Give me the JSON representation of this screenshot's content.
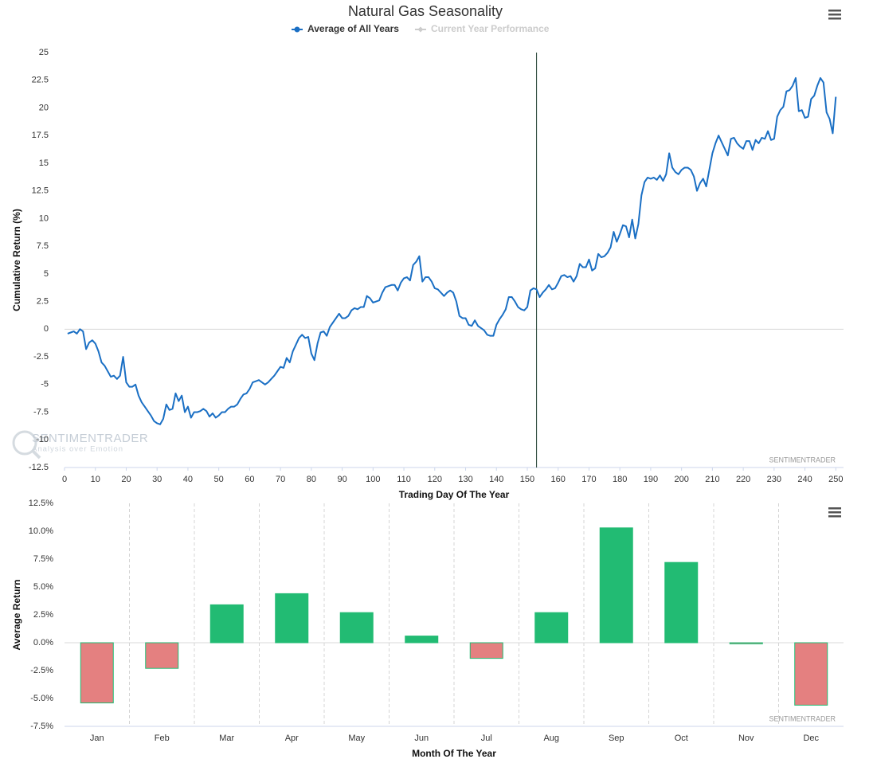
{
  "chart_data": [
    {
      "type": "line",
      "title": "Natural Gas Seasonality",
      "x_label": "Trading Day Of The Year",
      "y_label": "Cumulative Return (%)",
      "credit": "SENTIMENTRADER",
      "logo_text": "SENTIMENTRADER",
      "logo_tagline": "Analysis over Emotion",
      "legend_extra": {
        "name": "Current Year Performance",
        "color": "#cccccc"
      },
      "vline_x": 153,
      "xlim": [
        0,
        252.5
      ],
      "xticks": [
        0,
        10,
        20,
        30,
        40,
        50,
        60,
        70,
        80,
        90,
        100,
        110,
        120,
        130,
        140,
        150,
        160,
        170,
        180,
        190,
        200,
        210,
        220,
        230,
        240,
        250
      ],
      "ylim": [
        -12.5,
        25
      ],
      "yticks": [
        -12.5,
        -10,
        -7.5,
        -5,
        -2.5,
        0,
        2.5,
        5,
        7.5,
        10,
        12.5,
        15,
        17.5,
        20,
        22.5,
        25
      ],
      "x": [
        1,
        2,
        3,
        4,
        5,
        6,
        7,
        8,
        9,
        10,
        11,
        12,
        13,
        14,
        15,
        16,
        17,
        18,
        19,
        20,
        21,
        22,
        23,
        24,
        25,
        26,
        27,
        28,
        29,
        30,
        31,
        32,
        33,
        34,
        35,
        36,
        37,
        38,
        39,
        40,
        41,
        42,
        43,
        44,
        45,
        46,
        47,
        48,
        49,
        50,
        51,
        52,
        53,
        54,
        55,
        56,
        57,
        58,
        59,
        60,
        61,
        62,
        63,
        64,
        65,
        66,
        67,
        68,
        69,
        70,
        71,
        72,
        73,
        74,
        75,
        76,
        77,
        78,
        79,
        80,
        81,
        82,
        83,
        84,
        85,
        86,
        87,
        88,
        89,
        90,
        91,
        92,
        93,
        94,
        95,
        96,
        97,
        98,
        99,
        100,
        101,
        102,
        103,
        104,
        105,
        106,
        107,
        108,
        109,
        110,
        111,
        112,
        113,
        114,
        115,
        116,
        117,
        118,
        119,
        120,
        121,
        122,
        123,
        124,
        125,
        126,
        127,
        128,
        129,
        130,
        131,
        132,
        133,
        134,
        135,
        136,
        137,
        138,
        139,
        140,
        141,
        142,
        143,
        144,
        145,
        146,
        147,
        148,
        149,
        150,
        151,
        152,
        153,
        154,
        155,
        156,
        157,
        158,
        159,
        160,
        161,
        162,
        163,
        164,
        165,
        166,
        167,
        168,
        169,
        170,
        171,
        172,
        173,
        174,
        175,
        176,
        177,
        178,
        179,
        180,
        181,
        182,
        183,
        184,
        185,
        186,
        187,
        188,
        189,
        190,
        191,
        192,
        193,
        194,
        195,
        196,
        197,
        198,
        199,
        200,
        201,
        202,
        203,
        204,
        205,
        206,
        207,
        208,
        209,
        210,
        211,
        212,
        213,
        214,
        215,
        216,
        217,
        218,
        219,
        220,
        221,
        222,
        223,
        224,
        225,
        226,
        227,
        228,
        229,
        230,
        231,
        232,
        233,
        234,
        235,
        236,
        237,
        238,
        239,
        240,
        241,
        242,
        243,
        244,
        245,
        246,
        247,
        248,
        249,
        250
      ],
      "series": [
        {
          "name": "Average of All Years",
          "color": "#1a6fc4",
          "values": [
            -0.4,
            -0.3,
            -0.2,
            -0.4,
            0,
            -0.2,
            -1.8,
            -1.2,
            -1.0,
            -1.3,
            -2.0,
            -3.0,
            -3.3,
            -3.8,
            -4.3,
            -4.2,
            -4.5,
            -4.2,
            -2.5,
            -4.8,
            -5.2,
            -5.2,
            -5.0,
            -6.0,
            -6.6,
            -7.0,
            -7.4,
            -7.8,
            -8.3,
            -8.5,
            -8.6,
            -8.1,
            -6.8,
            -7.3,
            -7.2,
            -5.8,
            -6.5,
            -6.0,
            -7.5,
            -7.0,
            -8.0,
            -7.5,
            -7.5,
            -7.4,
            -7.2,
            -7.4,
            -7.9,
            -7.6,
            -8.0,
            -7.8,
            -7.5,
            -7.5,
            -7.2,
            -7.0,
            -7.0,
            -6.8,
            -6.3,
            -5.9,
            -5.8,
            -5.4,
            -4.8,
            -4.7,
            -4.6,
            -4.8,
            -5.0,
            -4.8,
            -4.5,
            -4.2,
            -3.8,
            -3.4,
            -3.5,
            -2.6,
            -3.0,
            -2.0,
            -1.4,
            -0.8,
            -0.5,
            -0.8,
            -0.7,
            -2.2,
            -2.8,
            -1.3,
            -0.3,
            -0.2,
            -0.6,
            0.2,
            0.6,
            1.0,
            1.4,
            1.0,
            1.0,
            1.2,
            1.7,
            1.9,
            1.8,
            2.0,
            2.0,
            3.0,
            2.8,
            2.4,
            2.5,
            2.6,
            3.3,
            3.8,
            3.9,
            4.0,
            4.0,
            3.5,
            4.2,
            4.6,
            4.7,
            4.4,
            5.8,
            6.1,
            6.6,
            4.3,
            4.7,
            4.7,
            4.3,
            3.7,
            3.6,
            3.3,
            3.0,
            3.3,
            3.5,
            3.3,
            2.5,
            1.2,
            1.0,
            1.0,
            0.4,
            0.3,
            0.8,
            0.3,
            0.1,
            -0.1,
            -0.5,
            -0.6,
            -0.6,
            0.4,
            0.9,
            1.3,
            1.8,
            2.9,
            2.9,
            2.5,
            2.0,
            1.8,
            1.7,
            2.0,
            3.5,
            3.7,
            3.6,
            2.9,
            3.3,
            3.6,
            4.0,
            3.6,
            3.7,
            4.2,
            4.8,
            4.9,
            4.7,
            4.8,
            4.3,
            4.8,
            5.9,
            5.6,
            5.6,
            6.3,
            5.3,
            5.5,
            6.8,
            6.5,
            6.6,
            6.9,
            7.4,
            8.8,
            7.9,
            8.6,
            9.4,
            9.3,
            8.3,
            9.9,
            8.2,
            9.5,
            12.1,
            13.3,
            13.7,
            13.6,
            13.7,
            13.5,
            13.9,
            13.4,
            14.0,
            15.9,
            14.6,
            14.2,
            14.0,
            14.4,
            14.6,
            14.6,
            14.4,
            13.8,
            12.5,
            13.2,
            13.6,
            12.9,
            14.4,
            15.9,
            16.8,
            17.5,
            16.9,
            16.3,
            15.7,
            17.2,
            17.3,
            16.8,
            16.5,
            16.3,
            17.0,
            17.0,
            16.2,
            17.1,
            16.8,
            17.3,
            17.2,
            17.9,
            17.1,
            17.2,
            19.2,
            19.8,
            20.1,
            21.5,
            21.6,
            22.0,
            22.7,
            19.7,
            19.8,
            19.1,
            19.2,
            20.8,
            21.1,
            22.0,
            22.7,
            22.3,
            19.6,
            19.0,
            17.7,
            21.0
          ]
        }
      ]
    },
    {
      "type": "bar",
      "x_label": "Month Of The Year",
      "y_label": "Average Return",
      "credit": "SENTIMENTRADER",
      "categories": [
        "Jan",
        "Feb",
        "Mar",
        "Apr",
        "May",
        "Jun",
        "Jul",
        "Aug",
        "Sep",
        "Oct",
        "Nov",
        "Dec"
      ],
      "values": [
        -5.4,
        -2.3,
        3.4,
        4.4,
        2.7,
        0.6,
        -1.4,
        2.7,
        10.3,
        7.2,
        -0.1,
        -5.6
      ],
      "positive_color": "#22bb73",
      "negative_color": "#e48080",
      "ylim": [
        -7.5,
        12.5
      ],
      "yticks": [
        {
          "value": -7.5,
          "label": "-7.5%"
        },
        {
          "value": -5,
          "label": "-5.0%"
        },
        {
          "value": -2.5,
          "label": "-2.5%"
        },
        {
          "value": 0,
          "label": "0.0%"
        },
        {
          "value": 2.5,
          "label": "2.5%"
        },
        {
          "value": 5,
          "label": "5.0%"
        },
        {
          "value": 7.5,
          "label": "7.5%"
        },
        {
          "value": 10,
          "label": "10.0%"
        },
        {
          "value": 12.5,
          "label": "12.5%"
        }
      ]
    }
  ]
}
